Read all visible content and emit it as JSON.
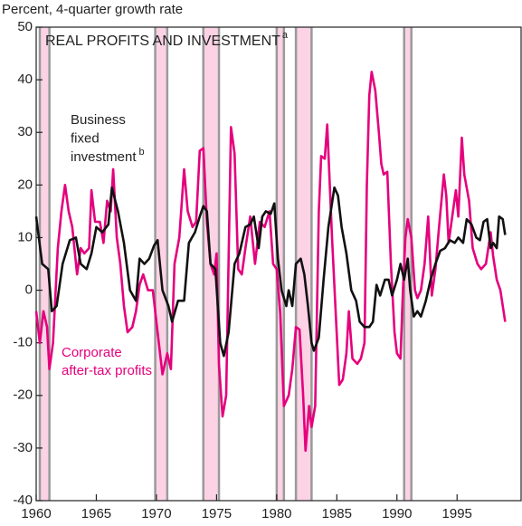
{
  "chart_data": {
    "type": "line",
    "axis_label": "Percent, 4-quarter growth rate",
    "title": "REAL PROFITS AND INVESTMENT",
    "title_note": "a",
    "annotations": [
      {
        "lines": [
          "Business",
          "fixed",
          "investment"
        ],
        "note": "b"
      },
      {
        "lines": [
          "Corporate",
          "after-tax profits"
        ]
      }
    ],
    "xlim": [
      1960,
      2000.4
    ],
    "xticks": [
      1960,
      1965,
      1970,
      1975,
      1980,
      1985,
      1990,
      1995
    ],
    "ylim": [
      -40,
      50
    ],
    "yticks": [
      -40,
      -30,
      -20,
      -10,
      0,
      10,
      20,
      30,
      40,
      50
    ],
    "shaded_periods": [
      [
        1960.3,
        1961.1
      ],
      [
        1969.9,
        1970.9
      ],
      [
        1973.9,
        1975.2
      ],
      [
        1980.0,
        1980.6
      ],
      [
        1981.6,
        1982.9
      ],
      [
        1990.6,
        1991.2
      ]
    ],
    "shade_color": "#fbd3e5",
    "shade_edge_color": "#9a9a9a",
    "series": [
      {
        "color": "#e5007d",
        "x": [
          1960.0,
          1960.3,
          1960.6,
          1960.9,
          1961.1,
          1961.4,
          1961.8,
          1962.1,
          1962.4,
          1962.7,
          1963.0,
          1963.4,
          1963.7,
          1964.0,
          1964.4,
          1964.6,
          1964.9,
          1965.3,
          1965.6,
          1965.9,
          1966.2,
          1966.4,
          1966.7,
          1967.0,
          1967.3,
          1967.6,
          1968.0,
          1968.3,
          1968.6,
          1968.9,
          1969.3,
          1969.7,
          1970.1,
          1970.5,
          1970.9,
          1971.2,
          1971.5,
          1971.9,
          1972.3,
          1972.6,
          1973.0,
          1973.3,
          1973.6,
          1973.9,
          1974.2,
          1974.5,
          1974.8,
          1975.0,
          1975.2,
          1975.5,
          1975.8,
          1976.2,
          1976.5,
          1976.8,
          1977.1,
          1977.4,
          1977.8,
          1978.2,
          1978.6,
          1979.0,
          1979.4,
          1979.7,
          1980.0,
          1980.3,
          1980.6,
          1981.0,
          1981.3,
          1981.6,
          1981.9,
          1982.2,
          1982.4,
          1982.7,
          1982.9,
          1983.2,
          1983.5,
          1983.7,
          1984.0,
          1984.2,
          1984.6,
          1984.9,
          1985.2,
          1985.5,
          1985.8,
          1986.0,
          1986.3,
          1986.7,
          1987.0,
          1987.3,
          1987.5,
          1987.7,
          1987.9,
          1988.2,
          1988.5,
          1988.7,
          1988.9,
          1989.2,
          1989.5,
          1989.8,
          1990.0,
          1990.3,
          1990.5,
          1990.7,
          1990.9,
          1991.2,
          1991.5,
          1991.7,
          1992.0,
          1992.3,
          1992.6,
          1992.9,
          1993.2,
          1993.5,
          1993.9,
          1994.1,
          1994.3,
          1994.6,
          1994.9,
          1995.1,
          1995.4,
          1995.6,
          1996.0,
          1996.3,
          1996.7,
          1997.0,
          1997.4,
          1997.8,
          1998.0,
          1998.3,
          1998.6,
          1999.0
        ],
        "values": [
          -4,
          -10,
          -4,
          -7,
          -15,
          -10,
          8,
          15,
          20,
          15,
          12,
          3,
          8,
          7,
          8,
          19,
          13,
          13,
          9,
          17,
          15,
          23,
          10,
          5,
          -3,
          -8,
          -7,
          -4,
          1,
          3,
          0,
          0,
          -8,
          -16,
          -12,
          -15,
          5,
          10,
          23,
          15,
          12,
          13,
          26.5,
          27,
          13,
          5,
          3,
          7,
          -14,
          -24,
          -20,
          31,
          26,
          4,
          3,
          8,
          14,
          5,
          13,
          12,
          15,
          5,
          4,
          -4.5,
          -22,
          -20,
          -15,
          -7,
          -7.5,
          -20,
          -30.5,
          -22,
          -26,
          -22,
          15,
          25.5,
          25,
          31.5,
          10,
          -4,
          -18,
          -17,
          -12,
          -4,
          -13,
          -14,
          -13,
          -10,
          20,
          37,
          41.5,
          38,
          30,
          24,
          22,
          22.5,
          5,
          -8,
          -12,
          -13,
          0,
          10,
          13.5,
          10,
          0,
          -1.5,
          0,
          5,
          14,
          -1,
          4,
          12,
          22,
          18,
          9,
          14,
          19,
          14,
          29,
          22,
          17,
          8,
          5,
          4,
          5,
          11,
          6.5,
          2,
          0,
          -6
        ]
      },
      {
        "color": "#111111",
        "x": [
          1960.0,
          1960.5,
          1961.0,
          1961.3,
          1961.7,
          1962.2,
          1962.8,
          1963.3,
          1963.7,
          1964.2,
          1964.6,
          1965.0,
          1965.5,
          1966.0,
          1966.3,
          1966.8,
          1967.3,
          1967.8,
          1968.3,
          1968.6,
          1969.0,
          1969.4,
          1969.8,
          1970.1,
          1970.5,
          1971.0,
          1971.3,
          1971.8,
          1972.3,
          1972.7,
          1973.2,
          1973.6,
          1973.9,
          1974.2,
          1974.5,
          1974.9,
          1975.3,
          1975.6,
          1976.0,
          1976.5,
          1976.9,
          1977.4,
          1977.8,
          1978.1,
          1978.5,
          1978.8,
          1979.1,
          1979.5,
          1979.8,
          1980.1,
          1980.4,
          1980.8,
          1981.0,
          1981.3,
          1981.6,
          1982.0,
          1982.3,
          1982.6,
          1982.9,
          1983.1,
          1983.5,
          1983.9,
          1984.3,
          1984.8,
          1985.1,
          1985.4,
          1985.8,
          1986.2,
          1986.6,
          1986.9,
          1987.3,
          1987.7,
          1988.0,
          1988.3,
          1988.6,
          1989.0,
          1989.3,
          1989.6,
          1990.0,
          1990.3,
          1990.6,
          1990.9,
          1991.1,
          1991.4,
          1991.7,
          1992.0,
          1992.4,
          1992.8,
          1993.2,
          1993.6,
          1994.0,
          1994.4,
          1994.8,
          1995.1,
          1995.5,
          1995.8,
          1996.2,
          1996.6,
          1996.9,
          1997.2,
          1997.5,
          1997.8,
          1998.0,
          1998.3,
          1998.5,
          1998.8,
          1999.0
        ],
        "values": [
          14,
          5,
          4,
          -4,
          -3,
          5,
          9.5,
          10,
          5,
          4,
          7,
          12,
          11,
          12.5,
          19.5,
          15,
          9,
          0,
          -2,
          6,
          5,
          6,
          8.5,
          9.5,
          0,
          -3,
          -6,
          -2,
          -2,
          9,
          11,
          14,
          16,
          15,
          5,
          4,
          -10,
          -12.5,
          -8,
          5,
          7,
          12,
          12.5,
          14,
          8,
          14,
          15,
          14.5,
          16.5,
          6,
          0,
          -3,
          0,
          -3,
          5,
          6,
          3,
          -3,
          -10,
          -11.5,
          -9,
          2,
          12,
          19.5,
          18,
          12,
          7,
          0,
          -2,
          -6,
          -7,
          -7,
          -6,
          1,
          -1,
          2,
          2,
          -1,
          2,
          5,
          2,
          6,
          0,
          -5,
          -4,
          -5,
          -2,
          2,
          5,
          7.5,
          8,
          9.5,
          9,
          10,
          9,
          13.5,
          12.5,
          10,
          9.5,
          13,
          13.5,
          8,
          9,
          8,
          14,
          13.5,
          10.5
        ]
      }
    ]
  }
}
